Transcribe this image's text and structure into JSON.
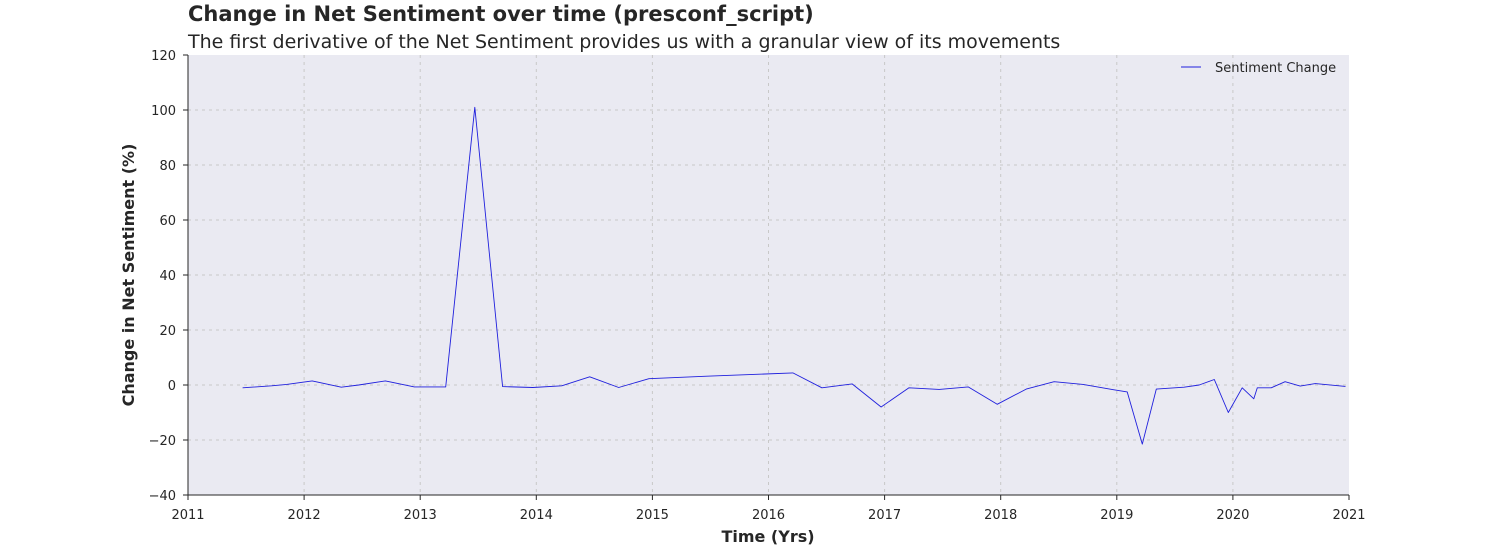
{
  "chart_data": {
    "type": "line",
    "title": "Change in Net Sentiment over time (presconf_script)",
    "subtitle": "The first derivative of the Net Sentiment provides us with a granular view of its movements",
    "xlabel": "Time (Yrs)",
    "ylabel": "Change in Net Sentiment (%)",
    "xlim": [
      2011,
      2021
    ],
    "ylim": [
      -40,
      120
    ],
    "xticks": [
      2011,
      2012,
      2013,
      2014,
      2015,
      2016,
      2017,
      2018,
      2019,
      2020,
      2021
    ],
    "yticks": [
      -40,
      -20,
      0,
      20,
      40,
      60,
      80,
      100,
      120
    ],
    "grid": true,
    "legend_position": "top-right",
    "colors": {
      "line": "#2020dd",
      "plot_bg": "#eaeaf2",
      "grid": "#c8c8c8"
    },
    "series": [
      {
        "name": "Sentiment Change",
        "x": [
          2011.47,
          2011.72,
          2011.85,
          2012.07,
          2012.32,
          2012.47,
          2012.7,
          2012.95,
          2013.22,
          2013.47,
          2013.71,
          2013.97,
          2014.22,
          2014.46,
          2014.71,
          2014.97,
          2015.47,
          2015.97,
          2016.21,
          2016.46,
          2016.72,
          2016.97,
          2017.21,
          2017.47,
          2017.72,
          2017.97,
          2018.22,
          2018.46,
          2018.71,
          2018.97,
          2019.09,
          2019.22,
          2019.34,
          2019.58,
          2019.71,
          2019.84,
          2019.96,
          2020.08,
          2020.18,
          2020.21,
          2020.33,
          2020.45,
          2020.58,
          2020.71,
          2020.97
        ],
        "y": [
          -1,
          -0.3,
          0.2,
          1.5,
          -0.8,
          0,
          1.5,
          -0.7,
          -0.7,
          101,
          -0.6,
          -0.9,
          -0.3,
          3,
          -0.9,
          2.3,
          3.2,
          4,
          4.4,
          -1,
          0.4,
          -8,
          -1,
          -1.6,
          -0.7,
          -7,
          -1.5,
          1.2,
          0.2,
          -1.7,
          -2.5,
          -21.5,
          -1.5,
          -0.8,
          0,
          2,
          -10,
          -1,
          -5,
          -1,
          -1,
          1.2,
          -0.4,
          0.5,
          -0.5
        ]
      }
    ]
  }
}
